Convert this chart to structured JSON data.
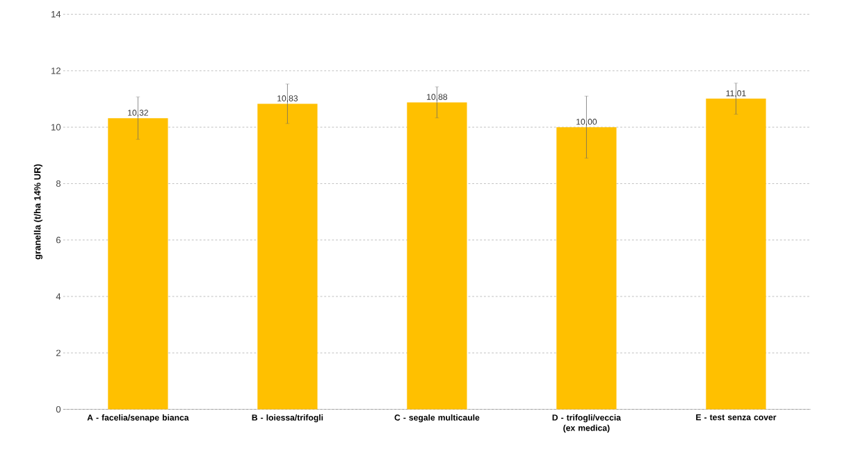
{
  "chart_data": {
    "type": "bar",
    "ylabel": "granella (t/ha 14% UR)",
    "categories": [
      "A - facelia/senape bianca",
      "B - loiessa/trifogli",
      "C - segale multicaule",
      "D - trifogli/veccia (ex medica)",
      "E - test senza cover"
    ],
    "values": [
      10.32,
      10.83,
      10.88,
      10.0,
      11.01
    ],
    "value_labels": [
      "10,32",
      "10,83",
      "10,88",
      "10,00",
      "11,01"
    ],
    "errors": [
      0.75,
      0.7,
      0.55,
      1.1,
      0.55
    ],
    "color": "#ffc000",
    "ylim": [
      0,
      14
    ],
    "yticks": [
      0,
      2,
      4,
      6,
      8,
      10,
      12,
      14
    ],
    "grid": "y"
  }
}
